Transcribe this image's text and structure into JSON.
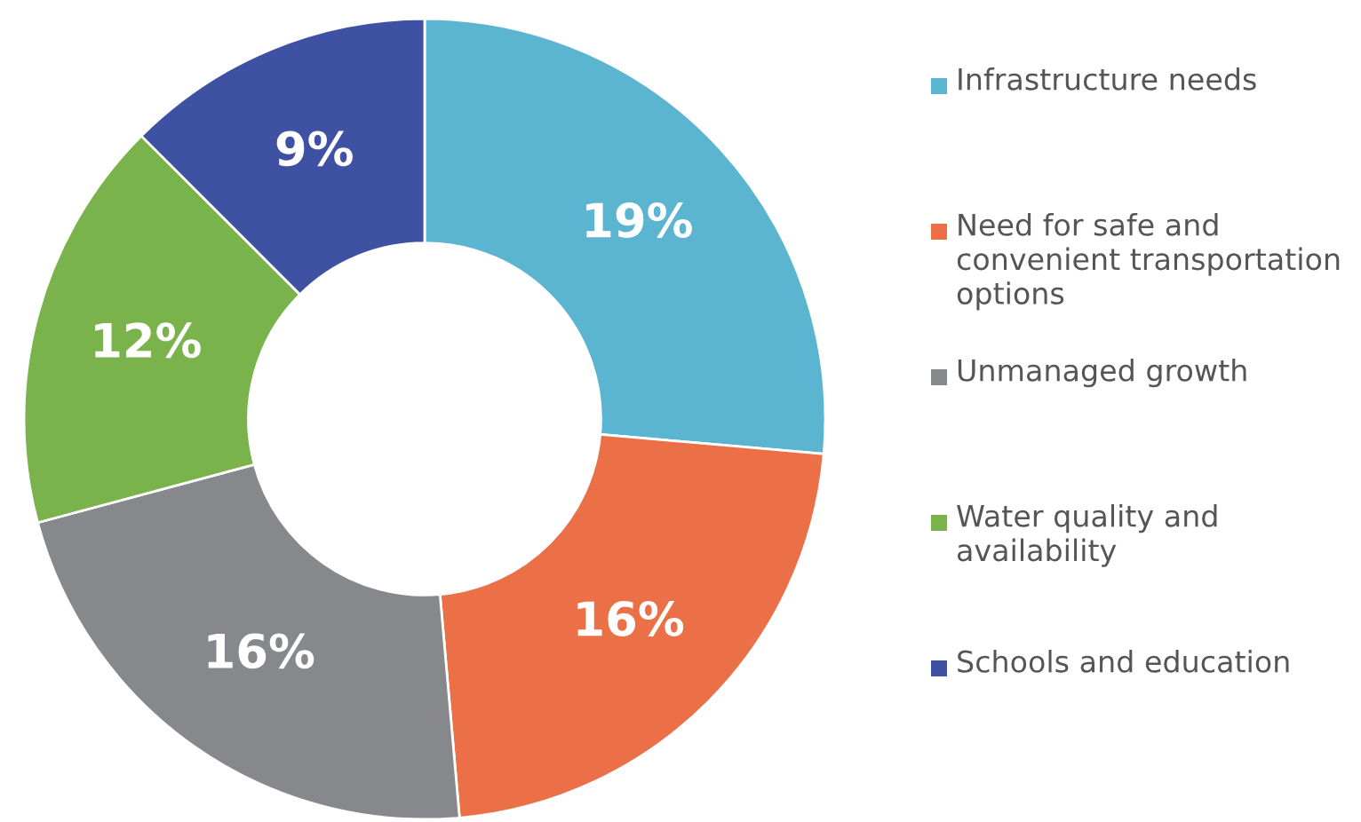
{
  "chart_data": {
    "type": "donut",
    "categories": [
      "Infrastructure needs",
      "Need for safe and convenient transportation options",
      "Unmanaged growth",
      "Water quality and availability",
      "Schools and education"
    ],
    "values": [
      19,
      16,
      16,
      12,
      9
    ],
    "colors": [
      "#5bb5d0",
      "#eb7048",
      "#87888c",
      "#7ab34c",
      "#3f51a3"
    ],
    "value_labels": [
      "19%",
      "16%",
      "16%",
      "12%",
      "9%"
    ],
    "legend": "right"
  }
}
